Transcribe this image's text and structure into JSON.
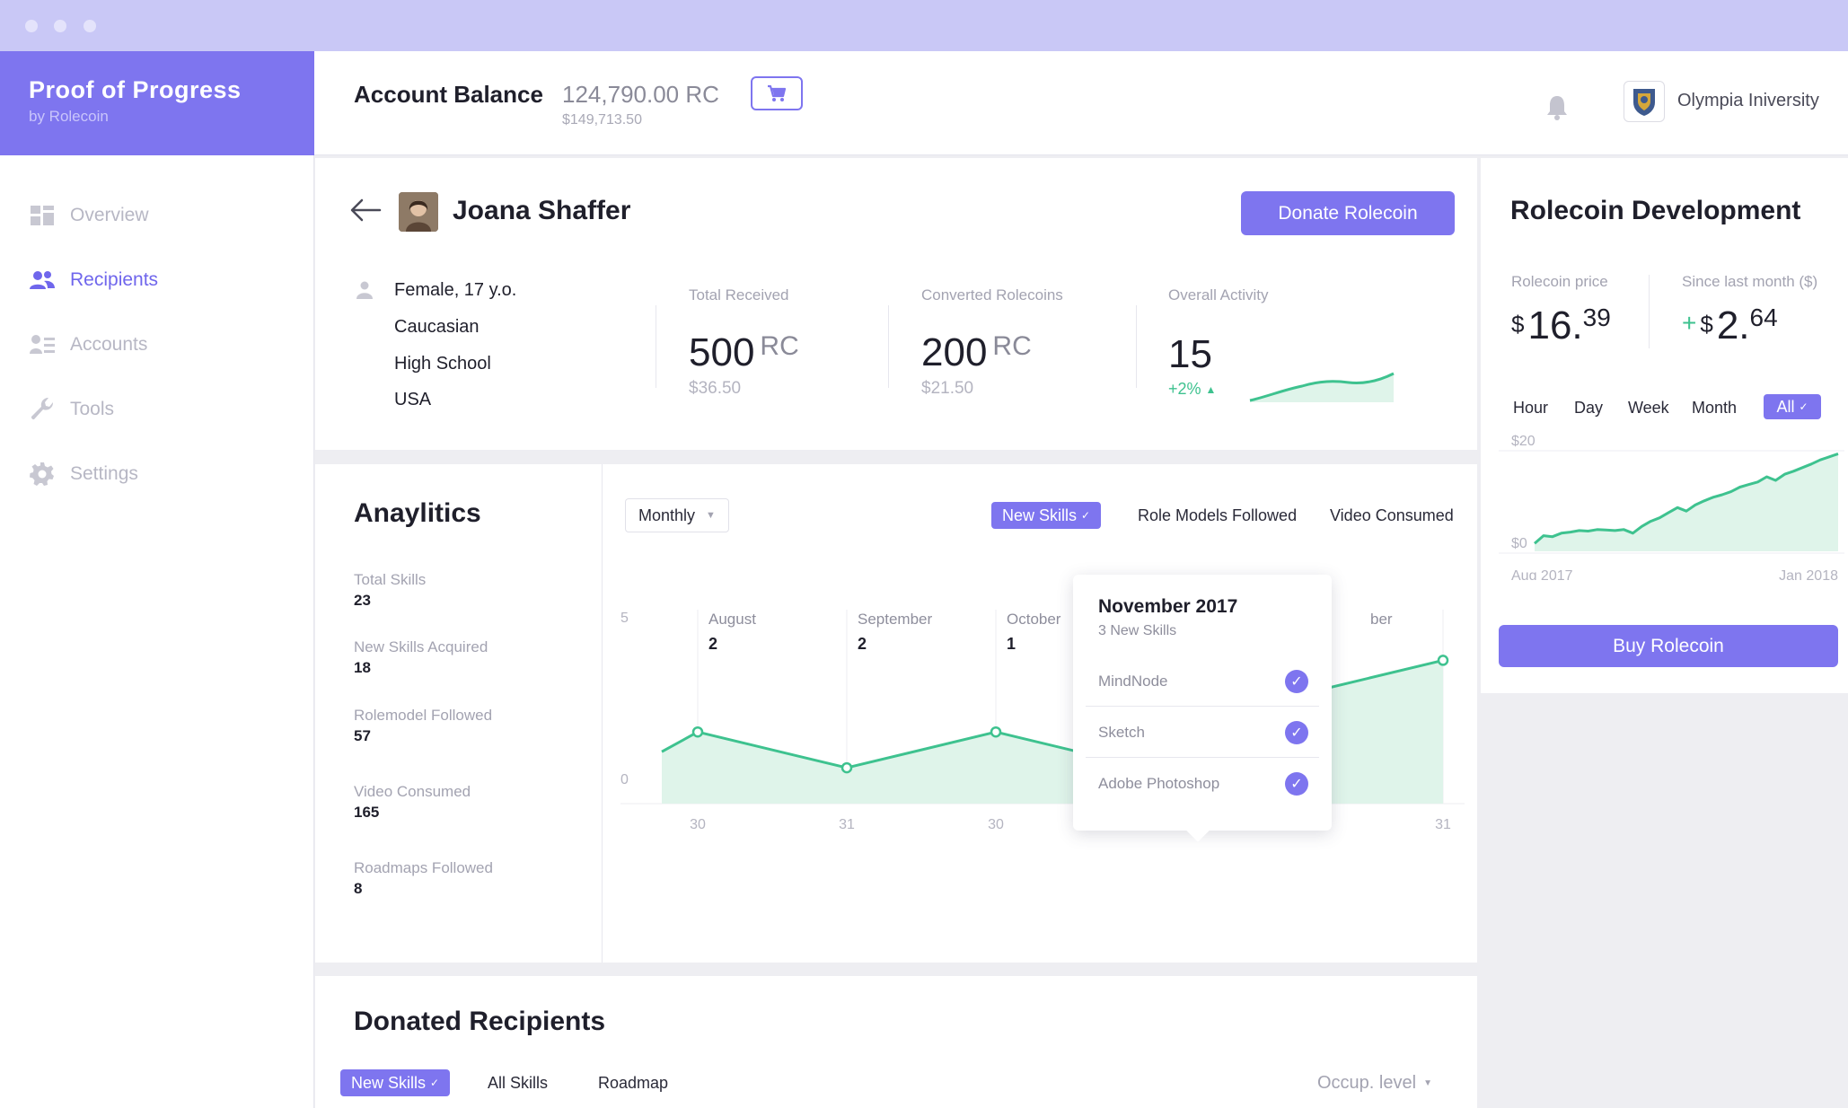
{
  "window": {
    "controls": [
      "close",
      "minimize",
      "maximize"
    ]
  },
  "brand": {
    "name": "Proof of Progress",
    "by": "by Rolecoin"
  },
  "header": {
    "balance_label": "Account Balance",
    "balance_value": "124,790.00 RC",
    "balance_usd": "$149,713.50",
    "cart_icon": "cart-icon",
    "bell_icon": "bell-icon",
    "org_name": "Olympia Iniversity"
  },
  "sidebar": {
    "items": [
      {
        "label": "Overview",
        "icon": "dashboard-icon",
        "active": false
      },
      {
        "label": "Recipients",
        "icon": "users-icon",
        "active": true
      },
      {
        "label": "Accounts",
        "icon": "accounts-icon",
        "active": false
      },
      {
        "label": "Tools",
        "icon": "wrench-icon",
        "active": false
      },
      {
        "label": "Settings",
        "icon": "gear-icon",
        "active": false
      }
    ]
  },
  "profile": {
    "name": "Joana Shaffer",
    "donate_label": "Donate Rolecoin",
    "details": [
      "Female, 17 y.o.",
      "Caucasian",
      "High School",
      "USA"
    ],
    "total_received": {
      "label": "Total Received",
      "value": "500",
      "unit": "RC",
      "usd": "$36.50"
    },
    "converted": {
      "label": "Converted Rolecoins",
      "value": "200",
      "unit": "RC",
      "usd": "$21.50"
    },
    "activity": {
      "label": "Overall Activity",
      "value": "15",
      "change": "+2%"
    }
  },
  "analytics": {
    "title": "Anaylitics",
    "metrics": [
      {
        "label": "Total Skills",
        "value": "23"
      },
      {
        "label": "New Skills Acquired",
        "value": "18"
      },
      {
        "label": "Rolemodel Followed",
        "value": "57"
      },
      {
        "label": "Video Consumed",
        "value": "165"
      },
      {
        "label": "Roadmaps Followed",
        "value": "8"
      }
    ],
    "period_select": "Monthly",
    "tabs": [
      {
        "label": "New Skills",
        "active": true
      },
      {
        "label": "Role Models Followed",
        "active": false
      },
      {
        "label": "Video Consumed",
        "active": false
      }
    ],
    "y_ticks": [
      "5",
      "0"
    ],
    "x_ticks": [
      "30",
      "31",
      "30",
      "31",
      "30",
      "31"
    ],
    "months": [
      {
        "name": "August",
        "value": "2"
      },
      {
        "name": "September",
        "value": "2"
      },
      {
        "name": "October",
        "value": "1"
      }
    ],
    "partial_month_label": "ber",
    "tooltip": {
      "title": "November 2017",
      "subtitle": "3 New Skills",
      "items": [
        "MindNode",
        "Sketch",
        "Adobe Photoshop"
      ]
    }
  },
  "chart_data": [
    {
      "type": "area",
      "title": "",
      "y": [
        2,
        1,
        2,
        1,
        3,
        4
      ],
      "ylim": [
        0,
        5
      ],
      "x_ticks": [
        "30",
        "31",
        "30",
        "31",
        "30",
        "31"
      ],
      "color": "#3ec28f",
      "fill": "#dff4ea"
    },
    {
      "type": "area",
      "title": "Rolecoin Development",
      "y_ticks": [
        "$20",
        "$0"
      ],
      "x_ticks": [
        "Aug 2017",
        "Jan 2018"
      ],
      "ylim": [
        0,
        20
      ],
      "y": [
        0.5,
        2,
        1.8,
        2.5,
        2.7,
        3,
        2.9,
        3.2,
        3.1,
        3,
        3.2,
        2.5,
        3.8,
        4.8,
        5.5,
        6.5,
        7.5,
        6.8,
        8,
        8.8,
        9.5,
        10,
        10.6,
        11.5,
        12,
        12.5,
        13.5,
        12.8,
        14,
        14.6,
        15.3,
        16,
        16.8,
        17.4,
        18
      ]
    }
  ],
  "rolecoin": {
    "title": "Rolecoin Development",
    "price_label": "Rolecoin price",
    "price_symbol": "$",
    "price_main": "16.",
    "price_cents": "39",
    "change_label": "Since last month ($)",
    "change_sign": "+",
    "change_symbol": "$",
    "change_main": "2.",
    "change_cents": "64",
    "ranges": [
      "Hour",
      "Day",
      "Week",
      "Month",
      "All"
    ],
    "active_range": "All",
    "buy_label": "Buy Rolecoin"
  },
  "donated": {
    "title": "Donated Recipients",
    "tabs": [
      "New Skills",
      "All Skills",
      "Roadmap"
    ],
    "sort_label": "Occup. level"
  }
}
